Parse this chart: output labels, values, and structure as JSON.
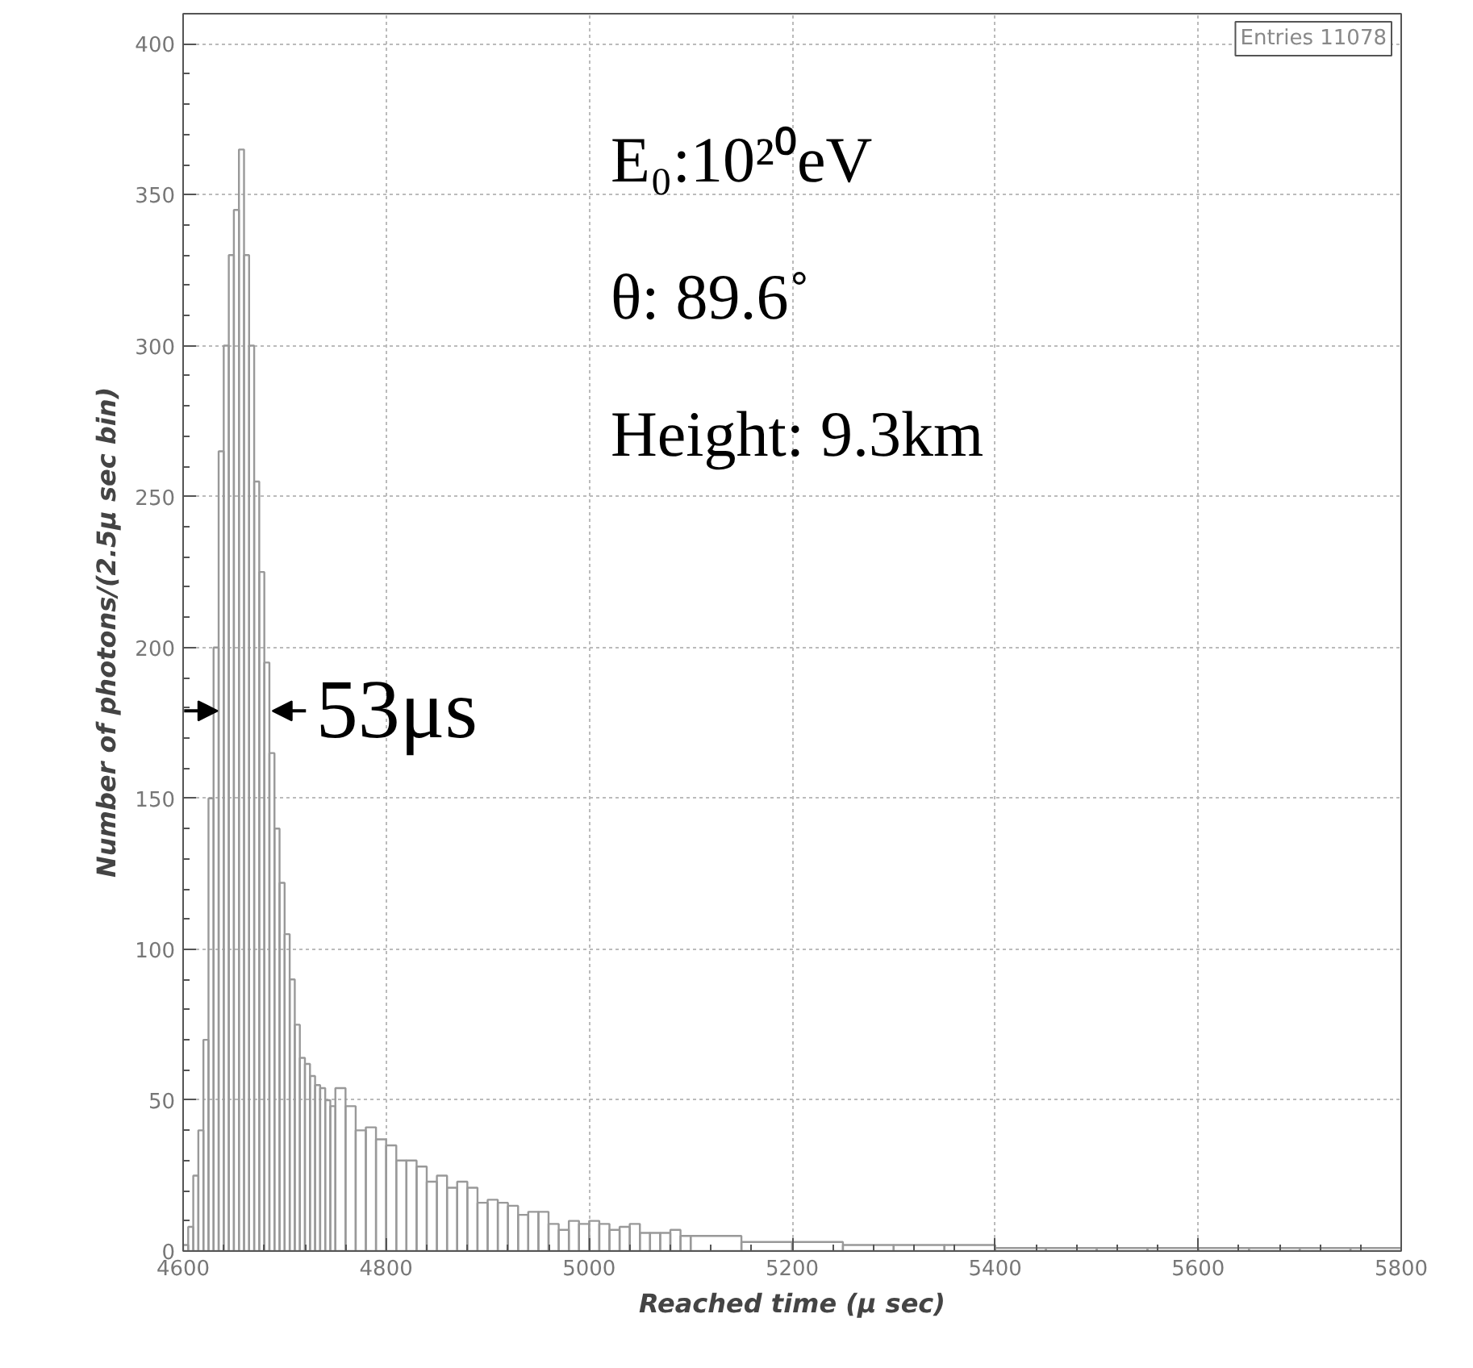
{
  "chart_data": {
    "type": "histogram",
    "xlabel": "Reached time (μ sec)",
    "ylabel": "Number of photons/(2.5μ sec bin)",
    "bins": [
      4600,
      4605,
      4610,
      4615,
      4620,
      4625,
      4630,
      4635,
      4640,
      4645,
      4650,
      4655,
      4660,
      4665,
      4670,
      4675,
      4680,
      4685,
      4690,
      4695,
      4700,
      4705,
      4710,
      4715,
      4720,
      4725,
      4730,
      4735,
      4740,
      4745,
      4750,
      4760,
      4770,
      4780,
      4790,
      4800,
      4810,
      4820,
      4830,
      4840,
      4850,
      4860,
      4870,
      4880,
      4890,
      4900,
      4910,
      4920,
      4930,
      4940,
      4950,
      4960,
      4970,
      4980,
      4990,
      5000,
      5010,
      5020,
      5030,
      5040,
      5050,
      5060,
      5070,
      5080,
      5090,
      5100,
      5150,
      5200,
      5250,
      5300,
      5350,
      5400,
      5450,
      5500,
      5550,
      5600,
      5650,
      5700,
      5750,
      5800
    ],
    "values": [
      2,
      8,
      25,
      40,
      70,
      150,
      200,
      265,
      300,
      330,
      345,
      365,
      330,
      300,
      255,
      225,
      195,
      165,
      140,
      122,
      105,
      90,
      75,
      64,
      62,
      58,
      55,
      54,
      50,
      48,
      54,
      48,
      40,
      41,
      37,
      35,
      30,
      30,
      28,
      23,
      25,
      21,
      23,
      21,
      16,
      17,
      16,
      15,
      12,
      13,
      13,
      9,
      7,
      10,
      9,
      10,
      9,
      7,
      8,
      9,
      6,
      6,
      6,
      7,
      5,
      5,
      3,
      3,
      2,
      2,
      2,
      1,
      1,
      1,
      1,
      1,
      1,
      1,
      1
    ],
    "color": "#999999",
    "xlim": [
      4600,
      5800
    ],
    "ylim": [
      0,
      410
    ],
    "xticks": [
      4600,
      4800,
      5000,
      5200,
      5400,
      5600,
      5800
    ],
    "yticks": [
      0,
      50,
      100,
      150,
      200,
      250,
      300,
      350,
      400
    ],
    "grid": true,
    "annotations": [
      "Entries 11078",
      "E₀:10²⁰eV",
      "θ:  89.6˚",
      "Height: 9.3km",
      {
        "text": "53μs",
        "x": 4661,
        "y": 179
      }
    ]
  }
}
